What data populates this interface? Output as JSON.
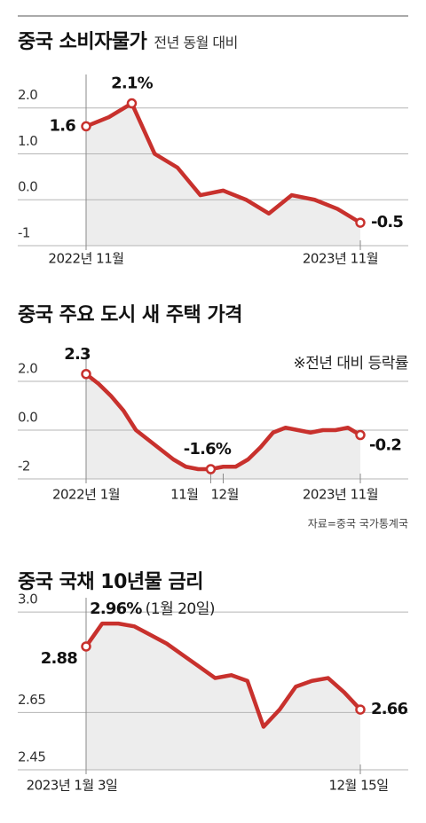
{
  "chart_data": [
    {
      "type": "line",
      "title": "중국 소비자물가",
      "subtitle": "전년 동월 대비",
      "color": "#c8312d",
      "categories": [
        "2022년 11월",
        null,
        null,
        null,
        null,
        null,
        null,
        null,
        null,
        null,
        null,
        null,
        "2023년 11월"
      ],
      "values": [
        1.6,
        1.8,
        2.1,
        1.0,
        0.7,
        0.1,
        0.2,
        0.0,
        -0.3,
        0.1,
        0.0,
        -0.2,
        -0.5
      ],
      "value_labels": [
        "1.6",
        null,
        "2.1%",
        null,
        null,
        null,
        null,
        null,
        null,
        null,
        null,
        null,
        "-0.5"
      ],
      "ylim": [
        -1,
        2.4
      ],
      "yticks": [
        {
          "value": 2,
          "label": "2.0"
        },
        {
          "value": 1,
          "label": "1.0"
        },
        {
          "value": 0,
          "label": "0.0"
        },
        -1
      ],
      "grid": true
    },
    {
      "type": "line",
      "title": "중국 주요 도시 새 주택 가격",
      "annotation": "※전년 대비 등락률",
      "source": "자료=중국 국가통계국",
      "color": "#c8312d",
      "categories": [
        "2022년 1월",
        null,
        null,
        null,
        null,
        null,
        null,
        null,
        null,
        null,
        "11월",
        "12월",
        null,
        null,
        null,
        null,
        null,
        null,
        null,
        null,
        null,
        null,
        "2023년 11월"
      ],
      "values": [
        2.3,
        1.9,
        1.4,
        0.8,
        0.0,
        -0.4,
        -0.8,
        -1.2,
        -1.5,
        -1.6,
        -1.6,
        -1.5,
        -1.5,
        -1.2,
        -0.7,
        -0.1,
        0.1,
        0.0,
        -0.1,
        0.0,
        0.0,
        0.1,
        -0.2
      ],
      "value_labels": [
        "2.3",
        null,
        null,
        null,
        null,
        null,
        null,
        null,
        null,
        null,
        "-1.6%",
        null,
        null,
        null,
        null,
        null,
        null,
        null,
        null,
        null,
        null,
        null,
        "-0.2"
      ],
      "ylim": [
        -2,
        2.8
      ],
      "yticks": [
        {
          "value": 2,
          "label": "2.0"
        },
        {
          "value": 0,
          "label": "0.0"
        },
        -2
      ],
      "grid": true
    },
    {
      "type": "line",
      "title": "중국 국채 10년물 금리",
      "annotation": "(1월 20일)",
      "color": "#c8312d",
      "categories": [
        "2023년 1월 3일",
        null,
        null,
        null,
        null,
        null,
        null,
        null,
        null,
        null,
        null,
        null,
        null,
        null,
        null,
        null,
        null,
        "12월 15일"
      ],
      "values": [
        2.88,
        2.96,
        2.96,
        2.95,
        2.92,
        2.89,
        2.85,
        2.81,
        2.77,
        2.78,
        2.76,
        2.6,
        2.66,
        2.74,
        2.76,
        2.77,
        2.72,
        2.66
      ],
      "value_labels": [
        "2.88",
        "2.96%",
        null,
        null,
        null,
        null,
        null,
        null,
        null,
        null,
        null,
        null,
        null,
        null,
        null,
        null,
        null,
        "2.66"
      ],
      "ylim": [
        2.45,
        3.05
      ],
      "yticks": [
        {
          "value": 3,
          "label": "3.0"
        },
        2.65,
        2.45
      ],
      "grid": true
    }
  ]
}
